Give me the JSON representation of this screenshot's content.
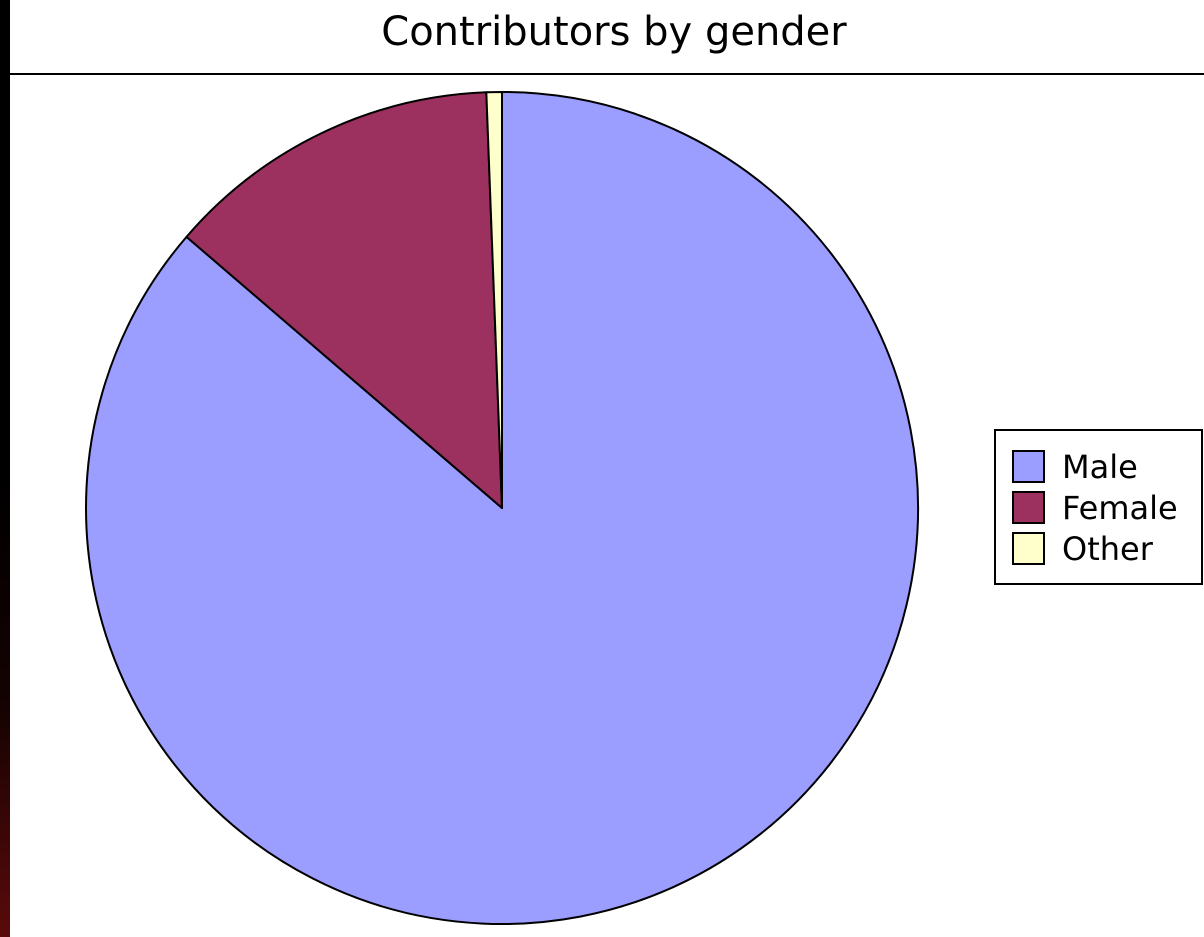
{
  "chart_data": {
    "type": "pie",
    "title": "Contributors by gender",
    "categories": [
      "Male",
      "Female",
      "Other"
    ],
    "values": [
      86.3,
      13.1,
      0.6
    ],
    "colors": [
      "#9b9dff",
      "#9c3160",
      "#ffffcc"
    ],
    "start_angle_deg": 0,
    "direction": "clockwise",
    "legend_position": "right"
  }
}
